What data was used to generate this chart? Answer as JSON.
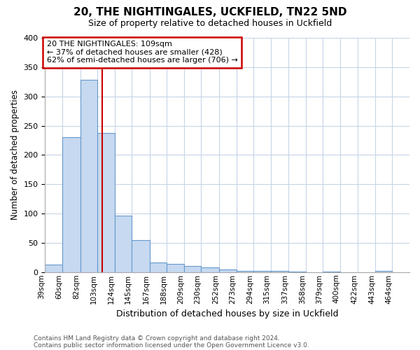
{
  "title": "20, THE NIGHTINGALES, UCKFIELD, TN22 5ND",
  "subtitle": "Size of property relative to detached houses in Uckfield",
  "xlabel": "Distribution of detached houses by size in Uckfield",
  "ylabel": "Number of detached properties",
  "footnote1": "Contains HM Land Registry data © Crown copyright and database right 2024.",
  "footnote2": "Contains public sector information licensed under the Open Government Licence v3.0.",
  "annotation_line1": "20 THE NIGHTINGALES: 109sqm",
  "annotation_line2": "← 37% of detached houses are smaller (428)",
  "annotation_line3": "62% of semi-detached houses are larger (706) →",
  "subject_value": 109,
  "bar_edges": [
    39,
    60,
    82,
    103,
    124,
    145,
    167,
    188,
    209,
    230,
    252,
    273,
    294,
    315,
    337,
    358,
    379,
    400,
    422,
    443,
    464
  ],
  "bar_labels": [
    "39sqm",
    "60sqm",
    "82sqm",
    "103sqm",
    "124sqm",
    "145sqm",
    "167sqm",
    "188sqm",
    "209sqm",
    "230sqm",
    "252sqm",
    "273sqm",
    "294sqm",
    "315sqm",
    "337sqm",
    "358sqm",
    "379sqm",
    "400sqm",
    "422sqm",
    "443sqm",
    "464sqm"
  ],
  "bar_heights": [
    13,
    230,
    328,
    238,
    97,
    55,
    17,
    14,
    11,
    8,
    4,
    2,
    2,
    2,
    1,
    0,
    1,
    0,
    0,
    2
  ],
  "bar_color": "#c6d9f0",
  "bar_edge_color": "#6699cc",
  "subject_line_color": "#cc0000",
  "annotation_box_color": "#cc0000",
  "grid_color": "#c8d4e8",
  "background_color": "#ffffff",
  "plot_bg_color": "#ffffff",
  "ylim": [
    0,
    400
  ],
  "yticks": [
    0,
    50,
    100,
    150,
    200,
    250,
    300,
    350,
    400
  ]
}
